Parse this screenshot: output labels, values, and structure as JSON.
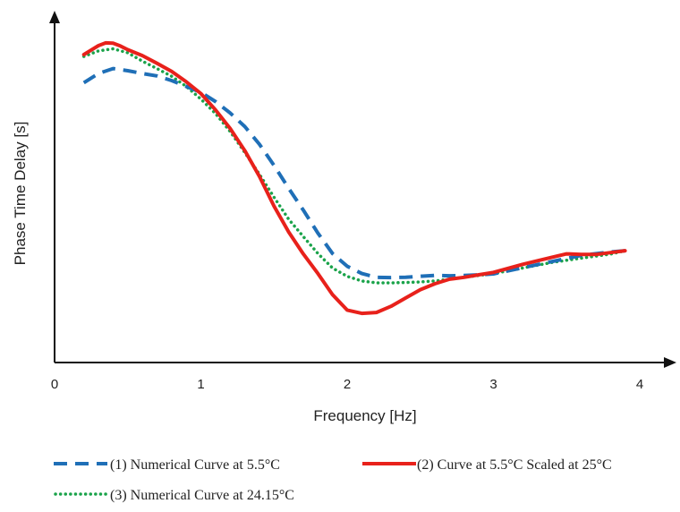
{
  "chart_data": {
    "type": "line",
    "title": "",
    "xlabel": "Frequency [Hz]",
    "ylabel": "Phase Time Delay [s]",
    "xlim": [
      0,
      4.3
    ],
    "ylim": [
      0,
      1
    ],
    "x_ticks": [
      "0",
      "1",
      "2",
      "3",
      "4"
    ],
    "y_ticks_shown": false,
    "grid": false,
    "legend_position": "bottom",
    "series": [
      {
        "name": "(1) Numerical Curve at 5.5°C",
        "color": "#1f6fb7",
        "style": "dashed",
        "x": [
          0.2,
          0.3,
          0.4,
          0.5,
          0.6,
          0.7,
          0.8,
          0.9,
          1.0,
          1.1,
          1.2,
          1.3,
          1.4,
          1.5,
          1.6,
          1.7,
          1.8,
          1.9,
          2.0,
          2.1,
          2.2,
          2.3,
          2.4,
          2.5,
          2.6,
          2.7,
          2.8,
          2.9,
          3.0,
          3.2,
          3.4,
          3.6,
          3.8,
          3.9
        ],
        "y": [
          0.906,
          0.936,
          0.952,
          0.945,
          0.936,
          0.928,
          0.913,
          0.894,
          0.875,
          0.845,
          0.808,
          0.764,
          0.707,
          0.638,
          0.564,
          0.494,
          0.419,
          0.353,
          0.312,
          0.288,
          0.276,
          0.275,
          0.276,
          0.279,
          0.282,
          0.281,
          0.282,
          0.284,
          0.287,
          0.307,
          0.327,
          0.347,
          0.358,
          0.362
        ]
      },
      {
        "name": "(2) Curve at 5.5°C Scaled at 25°C",
        "color": "#e8211b",
        "style": "solid",
        "x": [
          0.2,
          0.25,
          0.3,
          0.35,
          0.4,
          0.45,
          0.5,
          0.6,
          0.7,
          0.8,
          0.9,
          1.0,
          1.1,
          1.2,
          1.3,
          1.4,
          1.5,
          1.6,
          1.7,
          1.8,
          1.9,
          2.0,
          2.1,
          2.2,
          2.3,
          2.4,
          2.5,
          2.6,
          2.7,
          2.8,
          2.9,
          3.0,
          3.2,
          3.4,
          3.5,
          3.6,
          3.7,
          3.8,
          3.9
        ],
        "y": [
          0.997,
          1.012,
          1.026,
          1.035,
          1.034,
          1.025,
          1.013,
          0.994,
          0.969,
          0.943,
          0.909,
          0.871,
          0.818,
          0.758,
          0.686,
          0.603,
          0.506,
          0.423,
          0.352,
          0.288,
          0.22,
          0.17,
          0.159,
          0.162,
          0.182,
          0.209,
          0.236,
          0.255,
          0.27,
          0.276,
          0.284,
          0.292,
          0.318,
          0.341,
          0.352,
          0.35,
          0.35,
          0.356,
          0.362
        ]
      },
      {
        "name": "(3) Numerical Curve at 24.15°C",
        "color": "#1aa34a",
        "style": "dotted",
        "x": [
          0.2,
          0.3,
          0.4,
          0.5,
          0.6,
          0.7,
          0.8,
          0.9,
          1.0,
          1.1,
          1.2,
          1.3,
          1.4,
          1.5,
          1.6,
          1.7,
          1.8,
          1.9,
          2.0,
          2.1,
          2.2,
          2.3,
          2.4,
          2.5,
          2.6,
          2.7,
          2.8,
          2.9,
          3.0,
          3.2,
          3.4,
          3.6,
          3.8,
          3.9
        ],
        "y": [
          0.991,
          1.009,
          1.016,
          1.003,
          0.976,
          0.952,
          0.927,
          0.894,
          0.853,
          0.806,
          0.748,
          0.68,
          0.61,
          0.535,
          0.464,
          0.408,
          0.353,
          0.306,
          0.279,
          0.264,
          0.258,
          0.258,
          0.259,
          0.261,
          0.264,
          0.27,
          0.276,
          0.282,
          0.288,
          0.306,
          0.324,
          0.338,
          0.351,
          0.362
        ]
      }
    ]
  }
}
